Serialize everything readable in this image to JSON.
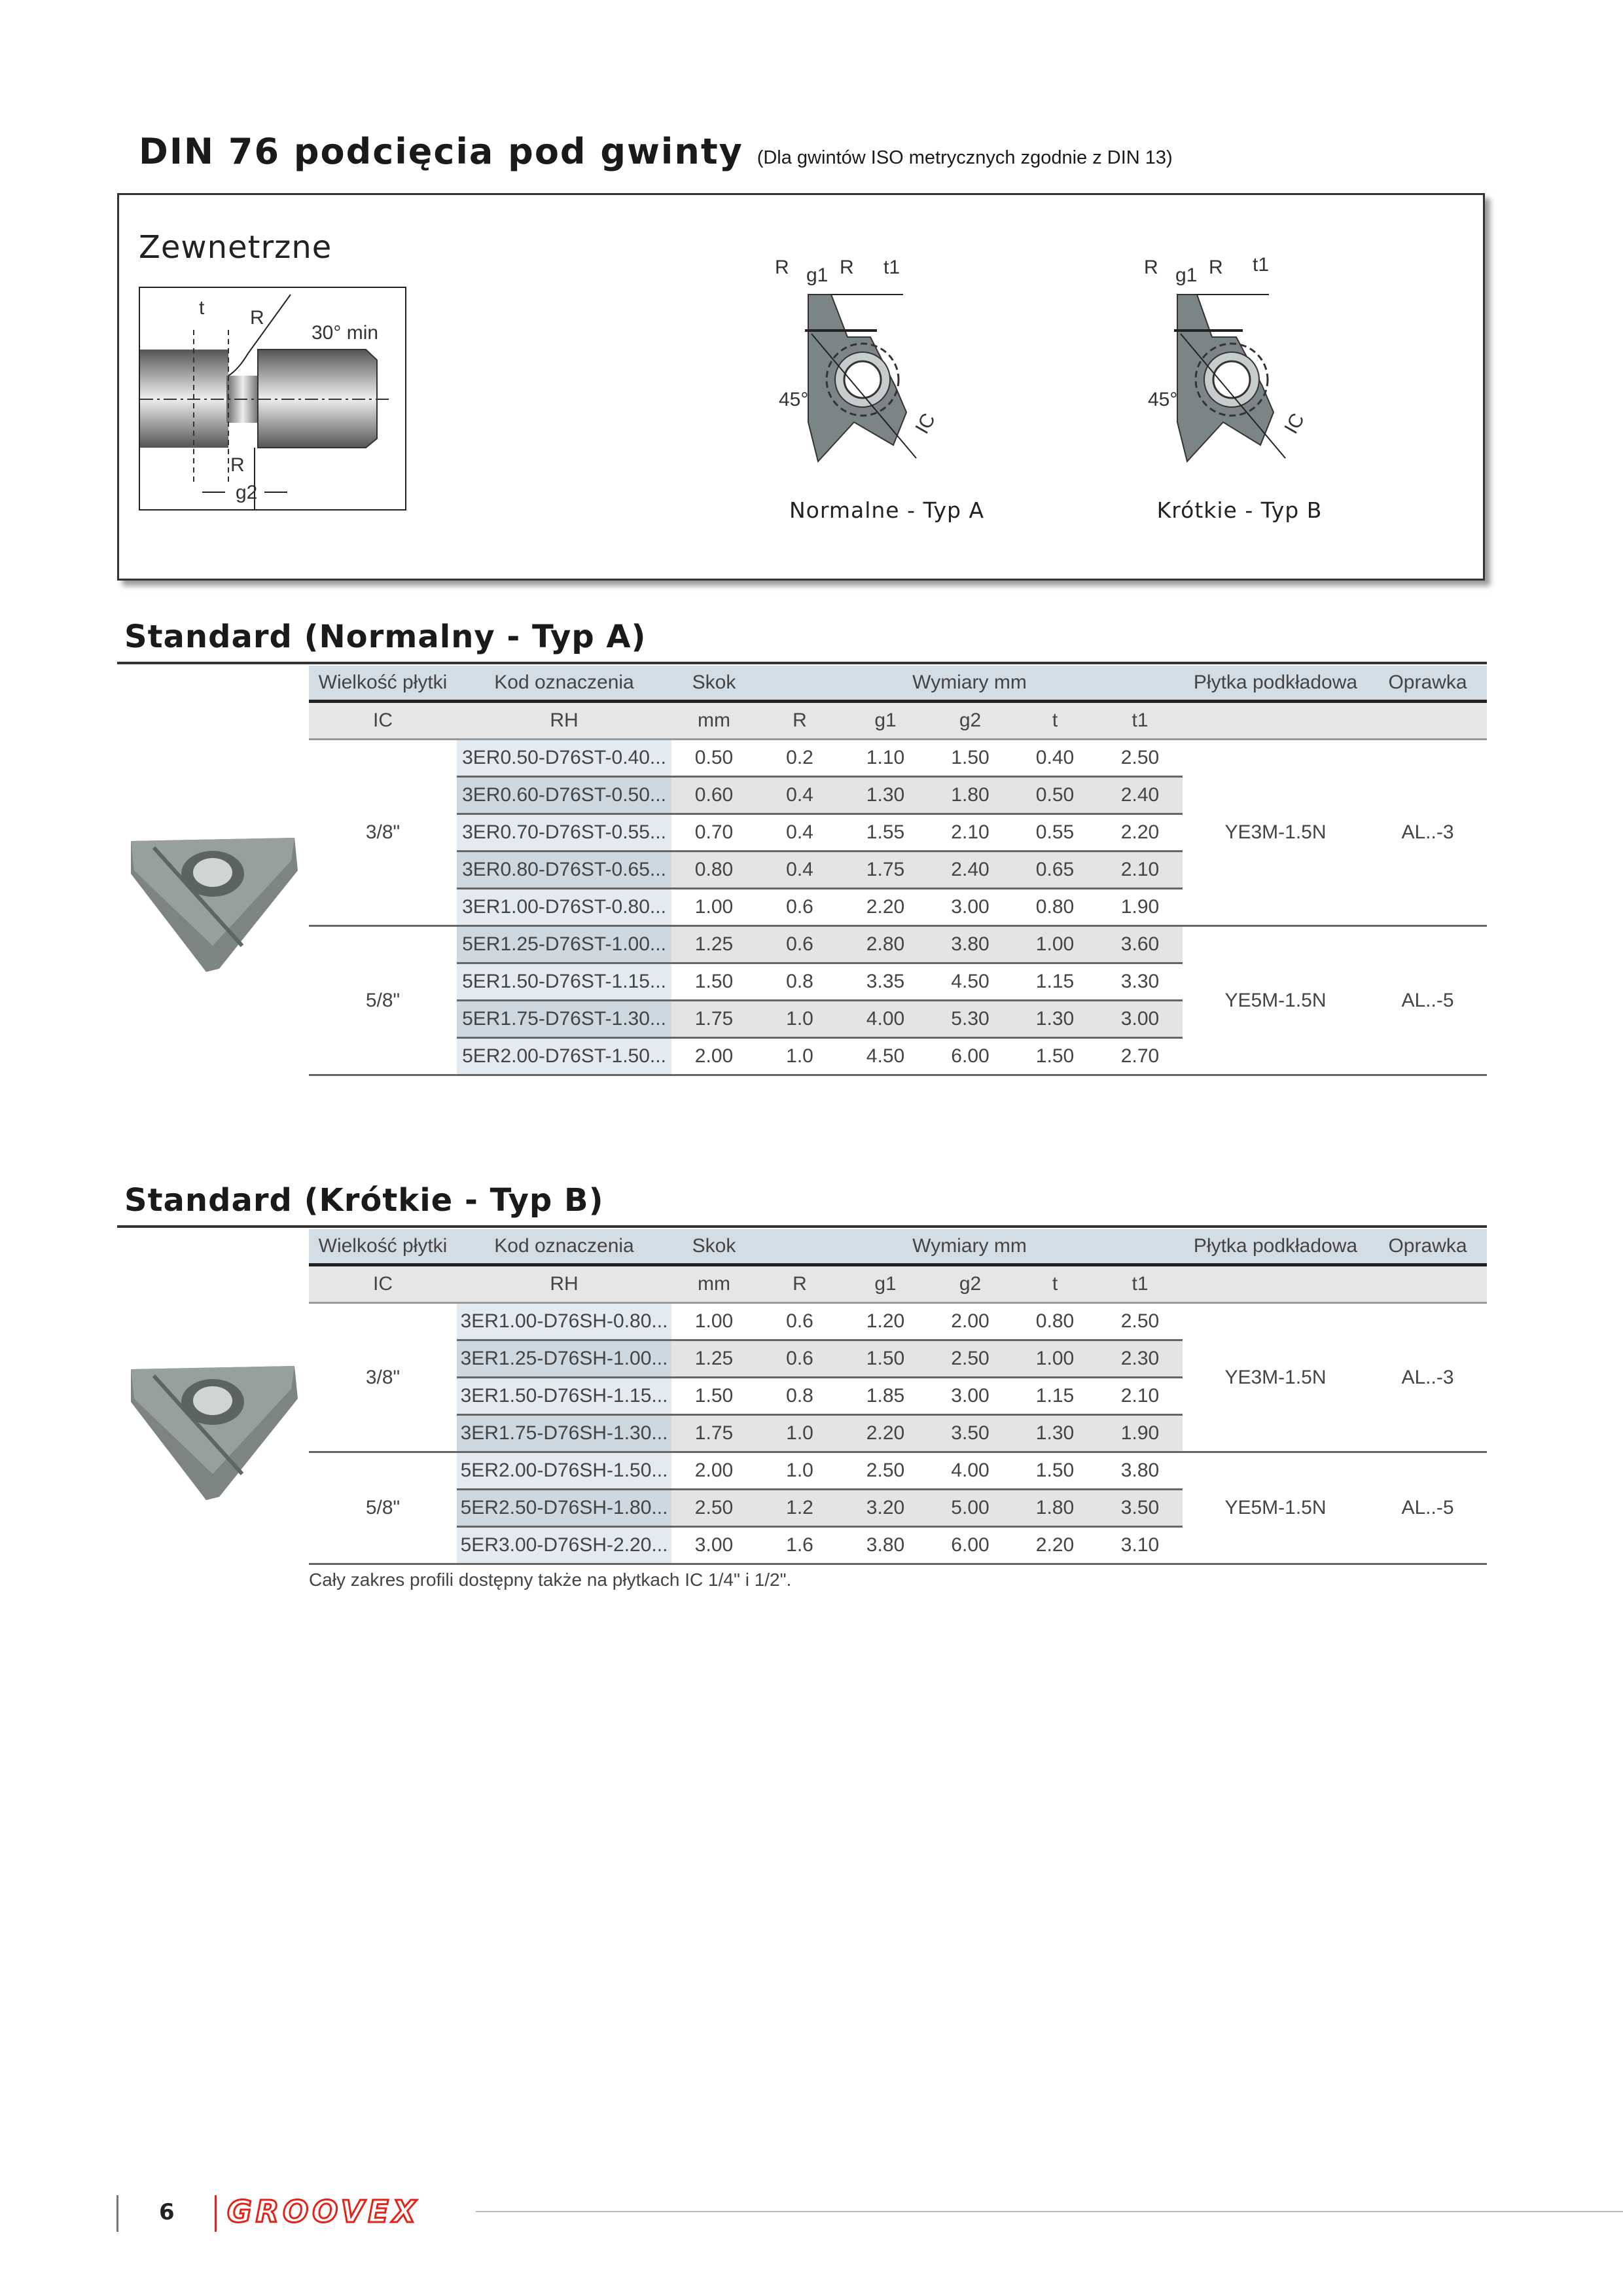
{
  "title": {
    "main": "DIN 76 podcięcia pod gwinty",
    "sub": "(Dla gwintów ISO metrycznych zgodnie z  DIN 13)"
  },
  "diagram": {
    "heading": "Zewnetrzne",
    "shaft_labels": {
      "t": "t",
      "R_top": "R",
      "angle": "30° min",
      "R_bottom": "R",
      "g2": "g2"
    },
    "insert_labels": {
      "R1": "R",
      "g1": "g1",
      "R2": "R",
      "t1": "t1",
      "angle": "45°",
      "ic": "IC"
    },
    "type_a_caption": "Normalne - Typ A",
    "type_b_caption": "Krótkie - Typ B"
  },
  "columns": {
    "header1": [
      "Wielkość płytki",
      "Kod oznaczenia",
      "Skok",
      "Wymiary mm",
      "Płytka podkładowa",
      "Oprawka"
    ],
    "header2": [
      "IC",
      "RH",
      "mm",
      "R",
      "g1",
      "g2",
      "t",
      "t1"
    ]
  },
  "section_a": {
    "heading": "Standard (Normalny - Typ A)",
    "groups": [
      {
        "ic": "3/8\"",
        "plytka": "YE3M-1.5N",
        "oprawka": "AL..-3",
        "rows": [
          [
            "3ER0.50-D76ST-0.40...",
            "0.50",
            "0.2",
            "1.10",
            "1.50",
            "0.40",
            "2.50"
          ],
          [
            "3ER0.60-D76ST-0.50...",
            "0.60",
            "0.4",
            "1.30",
            "1.80",
            "0.50",
            "2.40"
          ],
          [
            "3ER0.70-D76ST-0.55...",
            "0.70",
            "0.4",
            "1.55",
            "2.10",
            "0.55",
            "2.20"
          ],
          [
            "3ER0.80-D76ST-0.65...",
            "0.80",
            "0.4",
            "1.75",
            "2.40",
            "0.65",
            "2.10"
          ],
          [
            "3ER1.00-D76ST-0.80...",
            "1.00",
            "0.6",
            "2.20",
            "3.00",
            "0.80",
            "1.90"
          ]
        ]
      },
      {
        "ic": "5/8\"",
        "plytka": "YE5M-1.5N",
        "oprawka": "AL..-5",
        "rows": [
          [
            "5ER1.25-D76ST-1.00...",
            "1.25",
            "0.6",
            "2.80",
            "3.80",
            "1.00",
            "3.60"
          ],
          [
            "5ER1.50-D76ST-1.15...",
            "1.50",
            "0.8",
            "3.35",
            "4.50",
            "1.15",
            "3.30"
          ],
          [
            "5ER1.75-D76ST-1.30...",
            "1.75",
            "1.0",
            "4.00",
            "5.30",
            "1.30",
            "3.00"
          ],
          [
            "5ER2.00-D76ST-1.50...",
            "2.00",
            "1.0",
            "4.50",
            "6.00",
            "1.50",
            "2.70"
          ]
        ]
      }
    ]
  },
  "section_b": {
    "heading": "Standard (Krótkie - Typ B)",
    "groups": [
      {
        "ic": "3/8\"",
        "plytka": "YE3M-1.5N",
        "oprawka": "AL..-3",
        "rows": [
          [
            "3ER1.00-D76SH-0.80...",
            "1.00",
            "0.6",
            "1.20",
            "2.00",
            "0.80",
            "2.50"
          ],
          [
            "3ER1.25-D76SH-1.00...",
            "1.25",
            "0.6",
            "1.50",
            "2.50",
            "1.00",
            "2.30"
          ],
          [
            "3ER1.50-D76SH-1.15...",
            "1.50",
            "0.8",
            "1.85",
            "3.00",
            "1.15",
            "2.10"
          ],
          [
            "3ER1.75-D76SH-1.30...",
            "1.75",
            "1.0",
            "2.20",
            "3.50",
            "1.30",
            "1.90"
          ]
        ]
      },
      {
        "ic": "5/8\"",
        "plytka": "YE5M-1.5N",
        "oprawka": "AL..-5",
        "rows": [
          [
            "5ER2.00-D76SH-1.50...",
            "2.00",
            "1.0",
            "2.50",
            "4.00",
            "1.50",
            "3.80"
          ],
          [
            "5ER2.50-D76SH-1.80...",
            "2.50",
            "1.2",
            "3.20",
            "5.00",
            "1.80",
            "3.50"
          ],
          [
            "5ER3.00-D76SH-2.20...",
            "3.00",
            "1.6",
            "3.80",
            "6.00",
            "2.20",
            "3.10"
          ]
        ]
      }
    ],
    "note": "Cały zakres profili dostępny także na płytkach IC 1/4\" i 1/2\"."
  },
  "footer": {
    "page_number": "6",
    "logo": "GROOVEX",
    "brand_color": "#e2231a"
  },
  "colors": {
    "header_blue": "#d3dde6",
    "row_gray": "#e4e4e4",
    "insert_gray": "#7c8583"
  }
}
